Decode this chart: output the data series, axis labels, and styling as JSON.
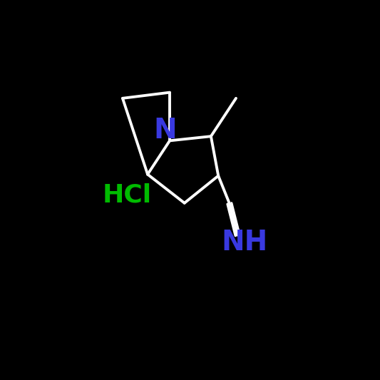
{
  "background_color": "#000000",
  "bond_color": "#ffffff",
  "N_color": "#3939e0",
  "HCl_color": "#00bb00",
  "NH_color": "#3939e0",
  "N_label": "N",
  "HCl_label": "HCl",
  "NH_label": "NH",
  "font_size_N": 28,
  "font_size_HCl": 26,
  "font_size_NH": 28,
  "figsize": [
    5.33,
    5.33
  ],
  "dpi": 100
}
